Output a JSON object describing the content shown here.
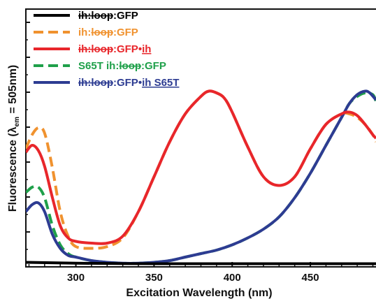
{
  "chart_data": {
    "type": "line",
    "title": "",
    "xlabel": "Excitation Wavelength (nm)",
    "ylabel_main": "Fluorescence (λ",
    "ylabel_sub": "em",
    "ylabel_tail": " = 505nm)",
    "xlim": [
      268,
      492
    ],
    "ylim": [
      0,
      1.0
    ],
    "xticks": [
      300,
      350,
      400,
      450
    ],
    "grid": false,
    "legend_position": "top-left",
    "series": [
      {
        "name": "ih:loop:GFP",
        "legend_parts": [
          {
            "text": "ih:loop",
            "strike": true,
            "underline": false,
            "color": "#000000"
          },
          {
            "text": ":GFP",
            "strike": false,
            "underline": false,
            "color": "#000000"
          }
        ],
        "color": "#000000",
        "dash": "solid",
        "x": [
          268,
          300,
          350,
          400,
          450,
          492
        ],
        "y": [
          0.01,
          0.005,
          0.002,
          0.002,
          0.002,
          0.002
        ]
      },
      {
        "name": "ih:loop:GFP",
        "legend_parts": [
          {
            "text": "ih:",
            "strike": false,
            "underline": false,
            "color": "#f0922f"
          },
          {
            "text": "loop",
            "strike": true,
            "underline": false,
            "color": "#f0922f"
          },
          {
            "text": ":GFP",
            "strike": false,
            "underline": false,
            "color": "#f0922f"
          }
        ],
        "color": "#f0922f",
        "dash": "dashed",
        "x": [
          268,
          272,
          276,
          280,
          285,
          290,
          295,
          300,
          310,
          320,
          330,
          340,
          350,
          360,
          370,
          380,
          385,
          390,
          395,
          400,
          410,
          420,
          430,
          440,
          450,
          460,
          470,
          475,
          480,
          485,
          490,
          492
        ],
        "y": [
          0.66,
          0.74,
          0.78,
          0.75,
          0.55,
          0.3,
          0.16,
          0.1,
          0.09,
          0.1,
          0.15,
          0.3,
          0.5,
          0.7,
          0.86,
          0.96,
          0.99,
          0.98,
          0.95,
          0.87,
          0.67,
          0.5,
          0.45,
          0.5,
          0.66,
          0.8,
          0.86,
          0.86,
          0.84,
          0.8,
          0.74,
          0.7
        ]
      },
      {
        "name": "ih:loop:GFP•ih",
        "legend_parts": [
          {
            "text": "ih:loop",
            "strike": true,
            "underline": false,
            "color": "#e8262b"
          },
          {
            "text": ":GFP•",
            "strike": false,
            "underline": false,
            "color": "#e8262b"
          },
          {
            "text": "ih",
            "strike": false,
            "underline": true,
            "color": "#e8262b"
          }
        ],
        "color": "#e8262b",
        "dash": "solid",
        "x": [
          268,
          272,
          276,
          280,
          285,
          290,
          295,
          300,
          310,
          320,
          330,
          340,
          350,
          360,
          370,
          380,
          385,
          390,
          395,
          400,
          410,
          420,
          430,
          440,
          450,
          460,
          470,
          475,
          480,
          485,
          490,
          492
        ],
        "y": [
          0.64,
          0.68,
          0.65,
          0.56,
          0.38,
          0.22,
          0.15,
          0.13,
          0.12,
          0.12,
          0.16,
          0.3,
          0.5,
          0.7,
          0.86,
          0.96,
          0.99,
          0.98,
          0.95,
          0.87,
          0.67,
          0.5,
          0.45,
          0.5,
          0.66,
          0.8,
          0.86,
          0.87,
          0.85,
          0.8,
          0.74,
          0.72
        ]
      },
      {
        "name": "S65T ih:loop:GFP",
        "legend_parts": [
          {
            "text": "S65T ih:",
            "strike": false,
            "underline": false,
            "color": "#1fa04a"
          },
          {
            "text": "loop",
            "strike": true,
            "underline": false,
            "color": "#1fa04a"
          },
          {
            "text": ":GFP",
            "strike": false,
            "underline": false,
            "color": "#1fa04a"
          }
        ],
        "color": "#1fa04a",
        "dash": "dashed",
        "x": [
          268,
          272,
          276,
          280,
          285,
          290,
          295,
          300,
          310,
          320,
          330,
          340,
          350,
          360,
          370,
          380,
          390,
          400,
          410,
          420,
          430,
          440,
          450,
          460,
          470,
          475,
          480,
          485,
          490,
          492
        ],
        "y": [
          0.41,
          0.44,
          0.44,
          0.38,
          0.22,
          0.11,
          0.06,
          0.04,
          0.02,
          0.01,
          0.005,
          0.005,
          0.01,
          0.02,
          0.04,
          0.06,
          0.08,
          0.11,
          0.15,
          0.2,
          0.27,
          0.38,
          0.52,
          0.68,
          0.84,
          0.92,
          0.96,
          0.98,
          0.97,
          0.93
        ]
      },
      {
        "name": "ih:loop:GFP•ih S65T",
        "legend_parts": [
          {
            "text": "ih:loop",
            "strike": true,
            "underline": false,
            "color": "#2d3c92"
          },
          {
            "text": ":GFP•",
            "strike": false,
            "underline": false,
            "color": "#2d3c92"
          },
          {
            "text": "ih S65T",
            "strike": false,
            "underline": true,
            "color": "#2d3c92"
          }
        ],
        "color": "#2d3c92",
        "dash": "solid",
        "x": [
          268,
          272,
          276,
          280,
          285,
          290,
          295,
          300,
          310,
          320,
          330,
          340,
          350,
          360,
          370,
          380,
          390,
          400,
          410,
          420,
          430,
          440,
          450,
          460,
          470,
          475,
          480,
          485,
          488,
          492
        ],
        "y": [
          0.3,
          0.34,
          0.35,
          0.3,
          0.17,
          0.09,
          0.05,
          0.04,
          0.02,
          0.01,
          0.005,
          0.005,
          0.01,
          0.02,
          0.04,
          0.06,
          0.08,
          0.11,
          0.15,
          0.2,
          0.27,
          0.38,
          0.52,
          0.68,
          0.84,
          0.92,
          0.97,
          0.99,
          0.98,
          0.94
        ]
      }
    ]
  }
}
